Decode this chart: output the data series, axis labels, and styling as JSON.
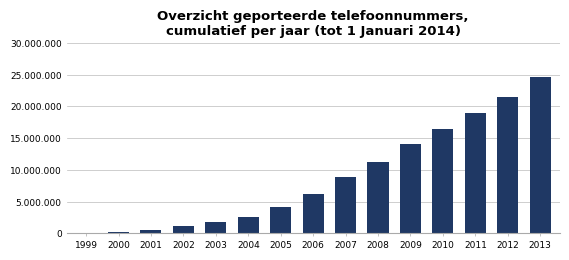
{
  "title": "Overzicht geporteerde telefoonnummers,\ncumulatief per jaar (tot 1 Januari 2014)",
  "years": [
    1999,
    2000,
    2001,
    2002,
    2003,
    2004,
    2005,
    2006,
    2007,
    2008,
    2009,
    2010,
    2011,
    2012,
    2013
  ],
  "values": [
    0,
    250000,
    600000,
    1100000,
    1750000,
    2600000,
    4100000,
    6200000,
    8900000,
    11300000,
    14100000,
    16400000,
    18900000,
    21500000,
    24600000
  ],
  "bar_color": "#1F3864",
  "ylim": [
    0,
    30000000
  ],
  "yticks": [
    0,
    5000000,
    10000000,
    15000000,
    20000000,
    25000000,
    30000000
  ],
  "ytick_labels": [
    "0",
    "5.000.000",
    "10.000.000",
    "15.000.000",
    "20.000.000",
    "25.000.000",
    "30.000.000"
  ],
  "title_fontsize": 9.5,
  "tick_fontsize": 6.5,
  "background_color": "#ffffff",
  "grid_color": "#bbbbbb",
  "bar_width": 0.65
}
